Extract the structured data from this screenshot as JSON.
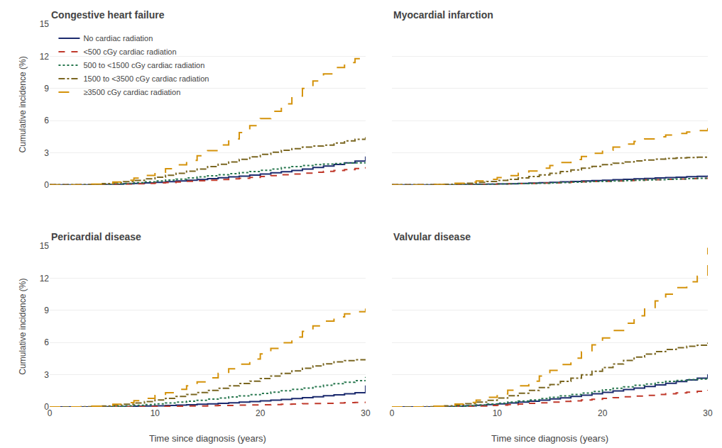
{
  "chart_data": [
    {
      "type": "line",
      "title": "Congestive heart failure",
      "ylabel": "Cumulative incidence (%)",
      "x": [
        0,
        1,
        2,
        3,
        4,
        5,
        6,
        7,
        8,
        9,
        10,
        11,
        12,
        13,
        14,
        15,
        16,
        17,
        18,
        19,
        20,
        21,
        22,
        23,
        24,
        25,
        26,
        27,
        28,
        29,
        30
      ],
      "xlim": [
        0,
        30
      ],
      "xticks": [
        0,
        10,
        20,
        30
      ],
      "ylim": [
        0,
        15
      ],
      "yticks": [
        0,
        3,
        6,
        9,
        12,
        15
      ],
      "grid": "y",
      "tick_labels": "y",
      "legend": "upper left",
      "series": [
        {
          "name": "No cardiac radiation",
          "color": "#1c2b6e",
          "line_style": "solid",
          "values": [
            0,
            0,
            0,
            0,
            0,
            0.03,
            0.06,
            0.1,
            0.14,
            0.19,
            0.24,
            0.3,
            0.37,
            0.44,
            0.5,
            0.58,
            0.66,
            0.74,
            0.82,
            0.92,
            1.02,
            1.12,
            1.22,
            1.35,
            1.48,
            1.62,
            1.76,
            1.9,
            2.05,
            2.22,
            2.65
          ]
        },
        {
          "name": "<500 cGy cardiac radiation",
          "color": "#c0392b",
          "line_style": "dash",
          "values": [
            0,
            0,
            0,
            0,
            0,
            0.02,
            0.04,
            0.07,
            0.1,
            0.14,
            0.18,
            0.22,
            0.27,
            0.33,
            0.38,
            0.44,
            0.5,
            0.56,
            0.62,
            0.7,
            0.78,
            0.86,
            0.94,
            1.02,
            1.1,
            1.18,
            1.26,
            1.34,
            1.43,
            1.52,
            1.65
          ]
        },
        {
          "name": "500 to <1500 cGy cardiac radiation",
          "color": "#27774e",
          "line_style": "dot",
          "values": [
            0,
            0,
            0,
            0,
            0.02,
            0.05,
            0.09,
            0.14,
            0.2,
            0.28,
            0.36,
            0.45,
            0.54,
            0.64,
            0.74,
            0.84,
            0.94,
            1.04,
            1.14,
            1.25,
            1.36,
            1.48,
            1.6,
            1.7,
            1.8,
            1.88,
            1.94,
            1.99,
            2.03,
            2.06,
            2.1
          ]
        },
        {
          "name": "1500 to <3500 cGy cardiac radiation",
          "color": "#7a6620",
          "line_style": "dashdot",
          "values": [
            0,
            0,
            0,
            0.02,
            0.06,
            0.12,
            0.2,
            0.3,
            0.42,
            0.56,
            0.72,
            0.9,
            1.08,
            1.28,
            1.48,
            1.7,
            1.92,
            2.14,
            2.38,
            2.62,
            2.84,
            3.04,
            3.22,
            3.38,
            3.52,
            3.62,
            3.7,
            3.9,
            4.1,
            4.25,
            4.45
          ]
        },
        {
          "name": "≥3500 cGy cardiac radiation",
          "color": "#d4920a",
          "line_style": "longdash",
          "values": [
            0,
            0,
            0,
            0.02,
            0.07,
            0.15,
            0.27,
            0.43,
            0.63,
            0.88,
            1.17,
            1.5,
            1.87,
            2.28,
            2.72,
            3.2,
            3.72,
            4.28,
            4.88,
            5.52,
            6.18,
            6.86,
            7.56,
            8.28,
            9.0,
            9.7,
            10.36,
            10.95,
            11.42,
            11.78,
            12.12
          ]
        }
      ]
    },
    {
      "type": "line",
      "title": "Myocardial infarction",
      "x": [
        0,
        1,
        2,
        3,
        4,
        5,
        6,
        7,
        8,
        9,
        10,
        11,
        12,
        13,
        14,
        15,
        16,
        17,
        18,
        19,
        20,
        21,
        22,
        23,
        24,
        25,
        26,
        27,
        28,
        29,
        30
      ],
      "xlim": [
        0,
        30
      ],
      "xticks": [
        0,
        10,
        20,
        30
      ],
      "ylim": [
        0,
        15
      ],
      "yticks": [
        0,
        3,
        6,
        9,
        12,
        15
      ],
      "grid": "y",
      "tick_labels": false,
      "series": [
        {
          "name": "No cardiac radiation",
          "color": "#1c2b6e",
          "line_style": "solid",
          "values": [
            0,
            0,
            0,
            0,
            0,
            0.01,
            0.02,
            0.03,
            0.05,
            0.07,
            0.09,
            0.11,
            0.14,
            0.17,
            0.2,
            0.24,
            0.28,
            0.32,
            0.36,
            0.4,
            0.44,
            0.48,
            0.52,
            0.56,
            0.6,
            0.64,
            0.68,
            0.72,
            0.76,
            0.8,
            0.88
          ]
        },
        {
          "name": "<500 cGy cardiac radiation",
          "color": "#c0392b",
          "line_style": "dash",
          "values": [
            0,
            0,
            0,
            0,
            0,
            0.01,
            0.02,
            0.03,
            0.04,
            0.06,
            0.08,
            0.1,
            0.12,
            0.14,
            0.17,
            0.19,
            0.22,
            0.25,
            0.28,
            0.31,
            0.34,
            0.37,
            0.4,
            0.43,
            0.46,
            0.49,
            0.52,
            0.55,
            0.58,
            0.61,
            0.65
          ]
        },
        {
          "name": "500 to <1500 cGy cardiac radiation",
          "color": "#27774e",
          "line_style": "dot",
          "values": [
            0,
            0,
            0,
            0,
            0,
            0.01,
            0.02,
            0.03,
            0.04,
            0.06,
            0.08,
            0.1,
            0.12,
            0.14,
            0.16,
            0.19,
            0.22,
            0.25,
            0.28,
            0.31,
            0.34,
            0.37,
            0.4,
            0.43,
            0.46,
            0.49,
            0.52,
            0.55,
            0.58,
            0.61,
            0.65
          ]
        },
        {
          "name": "1500 to <3500 cGy cardiac radiation",
          "color": "#7a6620",
          "line_style": "dashdot",
          "values": [
            0,
            0,
            0,
            0.01,
            0.03,
            0.06,
            0.1,
            0.16,
            0.23,
            0.31,
            0.41,
            0.52,
            0.65,
            0.78,
            0.93,
            1.08,
            1.24,
            1.4,
            1.56,
            1.72,
            1.88,
            2.02,
            2.14,
            2.24,
            2.32,
            2.4,
            2.46,
            2.51,
            2.55,
            2.58,
            2.62
          ]
        },
        {
          "name": "≥3500 cGy cardiac radiation",
          "color": "#d4920a",
          "line_style": "longdash",
          "values": [
            0,
            0,
            0,
            0.01,
            0.04,
            0.09,
            0.16,
            0.25,
            0.37,
            0.51,
            0.68,
            0.87,
            1.08,
            1.3,
            1.55,
            1.81,
            2.08,
            2.36,
            2.65,
            2.94,
            3.23,
            3.52,
            3.8,
            4.06,
            4.28,
            4.48,
            4.65,
            4.8,
            4.93,
            5.06,
            5.55
          ]
        }
      ]
    },
    {
      "type": "line",
      "title": "Pericardial disease",
      "ylabel": "Cumulative incidence (%)",
      "xlabel": "Time since diagnosis (years)",
      "x": [
        0,
        1,
        2,
        3,
        4,
        5,
        6,
        7,
        8,
        9,
        10,
        11,
        12,
        13,
        14,
        15,
        16,
        17,
        18,
        19,
        20,
        21,
        22,
        23,
        24,
        25,
        26,
        27,
        28,
        29,
        30
      ],
      "xlim": [
        0,
        30
      ],
      "xticks": [
        0,
        10,
        20,
        30
      ],
      "ylim": [
        0,
        15
      ],
      "yticks": [
        0,
        3,
        6,
        9,
        12,
        15
      ],
      "grid": "y",
      "series": [
        {
          "name": "No cardiac radiation",
          "color": "#1c2b6e",
          "line_style": "solid",
          "values": [
            0,
            0,
            0,
            0,
            0,
            0.01,
            0.02,
            0.04,
            0.06,
            0.08,
            0.1,
            0.13,
            0.16,
            0.2,
            0.24,
            0.28,
            0.33,
            0.38,
            0.44,
            0.5,
            0.56,
            0.63,
            0.7,
            0.78,
            0.86,
            0.95,
            1.04,
            1.13,
            1.22,
            1.32,
            2.0
          ]
        },
        {
          "name": "<500 cGy cardiac radiation",
          "color": "#c0392b",
          "line_style": "dash",
          "values": [
            0,
            0,
            0,
            0,
            0,
            0,
            0.01,
            0.01,
            0.02,
            0.03,
            0.04,
            0.05,
            0.06,
            0.08,
            0.09,
            0.11,
            0.13,
            0.14,
            0.16,
            0.18,
            0.2,
            0.22,
            0.24,
            0.26,
            0.29,
            0.31,
            0.33,
            0.36,
            0.39,
            0.42,
            0.5
          ]
        },
        {
          "name": "500 to <1500 cGy cardiac radiation",
          "color": "#27774e",
          "line_style": "dot",
          "values": [
            0,
            0,
            0,
            0,
            0.01,
            0.03,
            0.06,
            0.1,
            0.15,
            0.21,
            0.28,
            0.36,
            0.44,
            0.53,
            0.62,
            0.72,
            0.82,
            0.92,
            1.03,
            1.14,
            1.26,
            1.38,
            1.5,
            1.63,
            1.76,
            1.89,
            2.02,
            2.16,
            2.3,
            2.44,
            2.8
          ]
        },
        {
          "name": "1500 to <3500 cGy cardiac radiation",
          "color": "#7a6620",
          "line_style": "dashdot",
          "values": [
            0,
            0,
            0,
            0.01,
            0.04,
            0.09,
            0.16,
            0.25,
            0.36,
            0.49,
            0.64,
            0.8,
            0.97,
            1.15,
            1.34,
            1.54,
            1.74,
            1.96,
            2.18,
            2.4,
            2.64,
            2.88,
            3.12,
            3.36,
            3.6,
            3.82,
            4.02,
            4.2,
            4.32,
            4.4,
            4.45
          ]
        },
        {
          "name": "≥3500 cGy cardiac radiation",
          "color": "#d4920a",
          "line_style": "longdash",
          "values": [
            0,
            0,
            0,
            0.02,
            0.06,
            0.14,
            0.25,
            0.4,
            0.58,
            0.8,
            1.05,
            1.33,
            1.64,
            1.97,
            2.33,
            2.71,
            3.12,
            3.55,
            3.99,
            4.46,
            4.95,
            5.46,
            5.99,
            6.52,
            7.05,
            7.55,
            8.0,
            8.4,
            8.68,
            8.88,
            9.18
          ]
        }
      ]
    },
    {
      "type": "line",
      "title": "Valvular disease",
      "xlabel": "Time since diagnosis (years)",
      "x": [
        0,
        1,
        2,
        3,
        4,
        5,
        6,
        7,
        8,
        9,
        10,
        11,
        12,
        13,
        14,
        15,
        16,
        17,
        18,
        19,
        20,
        21,
        22,
        23,
        24,
        25,
        26,
        27,
        28,
        29,
        30
      ],
      "xlim": [
        0,
        30
      ],
      "xticks": [
        0,
        10,
        20,
        30
      ],
      "ylim": [
        0,
        15
      ],
      "yticks": [
        0,
        3,
        6,
        9,
        12,
        15
      ],
      "grid": "y",
      "tick_labels": "x",
      "series": [
        {
          "name": "No cardiac radiation",
          "color": "#1c2b6e",
          "line_style": "solid",
          "values": [
            0,
            0,
            0,
            0,
            0.01,
            0.03,
            0.06,
            0.1,
            0.15,
            0.21,
            0.28,
            0.36,
            0.44,
            0.53,
            0.63,
            0.74,
            0.85,
            0.97,
            1.09,
            1.22,
            1.35,
            1.48,
            1.62,
            1.76,
            1.9,
            2.05,
            2.2,
            2.36,
            2.52,
            2.68,
            3.05
          ]
        },
        {
          "name": "<500 cGy cardiac radiation",
          "color": "#c0392b",
          "line_style": "dash",
          "values": [
            0,
            0,
            0,
            0,
            0.01,
            0.02,
            0.04,
            0.06,
            0.09,
            0.13,
            0.17,
            0.22,
            0.27,
            0.33,
            0.38,
            0.44,
            0.51,
            0.57,
            0.64,
            0.71,
            0.79,
            0.86,
            0.94,
            1.01,
            1.08,
            1.15,
            1.22,
            1.3,
            1.38,
            1.46,
            1.58
          ]
        },
        {
          "name": "500 to <1500 cGy cardiac radiation",
          "color": "#27774e",
          "line_style": "dot",
          "values": [
            0,
            0,
            0,
            0,
            0.01,
            0.04,
            0.07,
            0.12,
            0.18,
            0.26,
            0.34,
            0.44,
            0.54,
            0.65,
            0.77,
            0.89,
            1.02,
            1.15,
            1.29,
            1.44,
            1.58,
            1.73,
            1.87,
            2.01,
            2.14,
            2.27,
            2.38,
            2.47,
            2.55,
            2.6,
            2.75
          ]
        },
        {
          "name": "1500 to <3500 cGy cardiac radiation",
          "color": "#7a6620",
          "line_style": "dashdot",
          "values": [
            0,
            0,
            0,
            0.01,
            0.04,
            0.1,
            0.18,
            0.3,
            0.44,
            0.62,
            0.82,
            1.04,
            1.28,
            1.53,
            1.8,
            2.08,
            2.38,
            2.68,
            3.0,
            3.33,
            3.67,
            4.0,
            4.33,
            4.64,
            4.92,
            5.16,
            5.36,
            5.52,
            5.65,
            5.75,
            6.0
          ]
        },
        {
          "name": "≥3500 cGy cardiac radiation",
          "color": "#d4920a",
          "line_style": "longdash",
          "values": [
            0,
            0,
            0,
            0.02,
            0.06,
            0.14,
            0.26,
            0.42,
            0.63,
            0.89,
            1.2,
            1.56,
            1.96,
            2.4,
            2.88,
            3.4,
            3.95,
            4.54,
            5.15,
            5.78,
            6.44,
            7.12,
            7.8,
            8.5,
            9.2,
            9.88,
            10.52,
            11.12,
            11.68,
            12.18,
            14.85
          ]
        }
      ]
    }
  ]
}
